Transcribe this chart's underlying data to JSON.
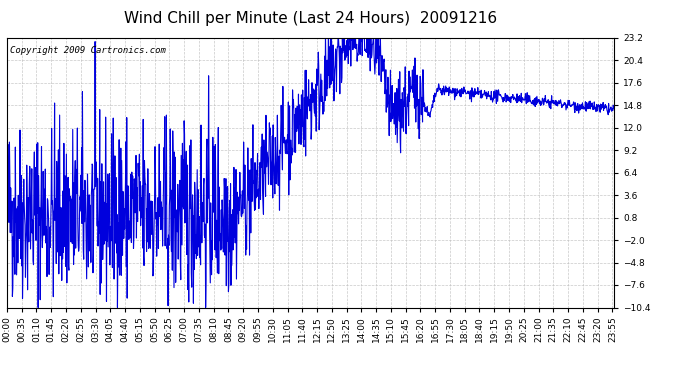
{
  "title": "Wind Chill per Minute (Last 24 Hours)  20091216",
  "copyright": "Copyright 2009 Cartronics.com",
  "line_color": "#0000dd",
  "bg_color": "#ffffff",
  "plot_bg_color": "#ffffff",
  "grid_color": "#bbbbbb",
  "yticks": [
    23.2,
    20.4,
    17.6,
    14.8,
    12.0,
    9.2,
    6.4,
    3.6,
    0.8,
    -2.0,
    -4.8,
    -7.6,
    -10.4
  ],
  "ymin": -10.4,
  "ymax": 23.2,
  "xtick_labels": [
    "00:00",
    "00:35",
    "01:10",
    "01:45",
    "02:20",
    "02:55",
    "03:30",
    "04:05",
    "04:40",
    "05:15",
    "05:50",
    "06:25",
    "07:00",
    "07:35",
    "08:10",
    "08:45",
    "09:20",
    "09:55",
    "10:30",
    "11:05",
    "11:40",
    "12:15",
    "12:50",
    "13:25",
    "14:00",
    "14:35",
    "15:10",
    "15:45",
    "16:20",
    "16:55",
    "17:30",
    "18:05",
    "18:40",
    "19:15",
    "19:50",
    "20:25",
    "21:00",
    "21:35",
    "22:10",
    "22:45",
    "23:20",
    "23:55"
  ],
  "title_fontsize": 11,
  "copyright_fontsize": 6.5,
  "tick_fontsize": 6.5,
  "line_width": 0.8
}
